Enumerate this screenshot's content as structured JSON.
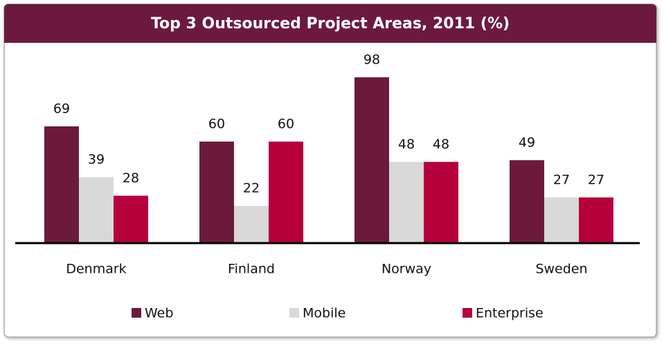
{
  "chart_data": {
    "type": "bar",
    "title": "Top 3 Outsourced Project Areas, 2011 (%)",
    "categories": [
      "Denmark",
      "Finland",
      "Norway",
      "Sweden"
    ],
    "series": [
      {
        "name": "Web",
        "color": "#6b1a3e",
        "values": [
          69,
          60,
          98,
          49
        ]
      },
      {
        "name": "Mobile",
        "color": "#d9d9d9",
        "values": [
          39,
          22,
          48,
          27
        ]
      },
      {
        "name": "Enterprise",
        "color": "#b5003c",
        "values": [
          28,
          60,
          48,
          27
        ]
      }
    ],
    "legend": "bottom"
  }
}
